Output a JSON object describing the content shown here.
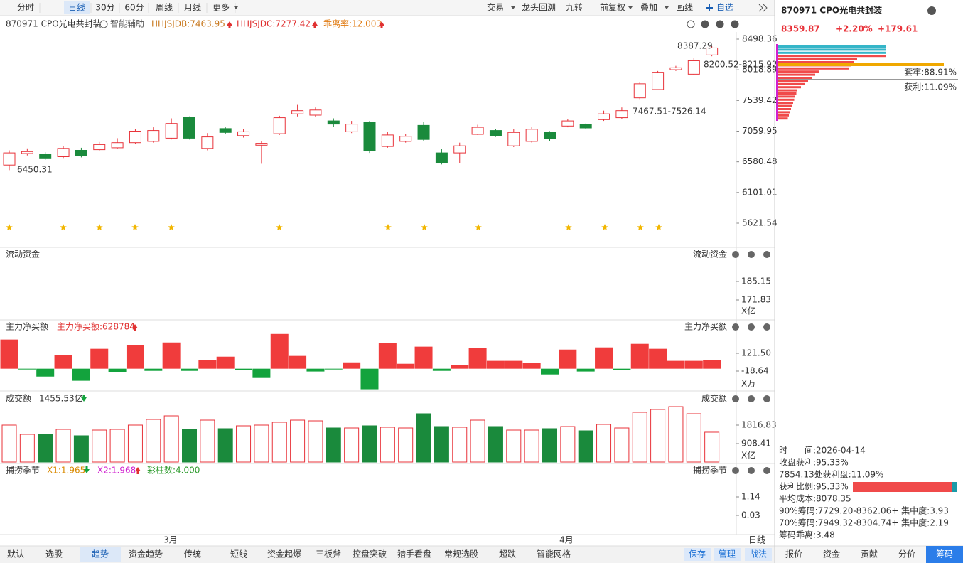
{
  "toolbar": {
    "left_tabs": [
      "分时",
      "日线",
      "30分",
      "60分",
      "周线",
      "月线",
      "更多"
    ],
    "right_buttons": [
      "交易",
      "龙头回溯",
      "九转",
      "前复权",
      "叠加",
      "画线",
      "自选"
    ]
  },
  "indicator_bar": {
    "name": "870971 CPO光电共封装",
    "assist": "智能辅助",
    "items": [
      "HHJSJDB:7463.95",
      "HHJSJDC:7277.42",
      "乖离率:12.003"
    ]
  },
  "price_chart": {
    "yticks": [
      8498.36,
      8018.89,
      7539.42,
      7059.95,
      6580.48,
      6101.01,
      5621.54
    ],
    "annotations": [
      "8387.29",
      "8200.52-8215.92",
      "7467.51-7526.14",
      "6450.31"
    ],
    "colors": {
      "up": "#e8333a",
      "down": "#1a8a3c"
    },
    "candles": {
      "open": [
        6530,
        6710,
        6700,
        6660,
        6760,
        6770,
        6800,
        6880,
        6900,
        6950,
        7280,
        6790,
        7100,
        6990,
        6840,
        7020,
        7330,
        7310,
        7220,
        7050,
        7200,
        6820,
        6900,
        7150,
        6720,
        6720,
        7010,
        7070,
        6830,
        6900,
        7040,
        7140,
        7160,
        7240,
        7270,
        7580,
        7710,
        8020,
        7950,
        8250
      ],
      "close": [
        6720,
        6740,
        6640,
        6790,
        6680,
        6850,
        6880,
        7060,
        7070,
        7180,
        6950,
        6970,
        7040,
        7050,
        6870,
        7270,
        7380,
        7390,
        7170,
        7170,
        6750,
        7000,
        6980,
        6930,
        6560,
        6830,
        7120,
        6990,
        7040,
        7090,
        6940,
        7220,
        7110,
        7330,
        7380,
        7800,
        7980,
        8050,
        8160,
        8360
      ],
      "high": [
        6760,
        6790,
        6730,
        6830,
        6800,
        6890,
        6950,
        7090,
        7120,
        7260,
        7290,
        7030,
        7120,
        7090,
        6900,
        7300,
        7470,
        7430,
        7260,
        7220,
        7220,
        7050,
        7020,
        7200,
        6780,
        6880,
        7160,
        7090,
        7090,
        7120,
        7060,
        7250,
        7180,
        7380,
        7430,
        7830,
        8000,
        8080,
        8210,
        8387.29
      ],
      "low": [
        6450.31,
        6680,
        6610,
        6640,
        6650,
        6750,
        6780,
        6860,
        6880,
        6930,
        6930,
        6760,
        7010,
        6960,
        6550,
        7000,
        7290,
        7280,
        7130,
        7030,
        6720,
        6800,
        6880,
        6900,
        6540,
        6560,
        7000,
        6970,
        6810,
        6880,
        6900,
        7120,
        7090,
        7220,
        7250,
        7560,
        7700,
        8000,
        7940,
        8230
      ]
    }
  },
  "fund_flow": {
    "title": "流动资金",
    "yticks": [
      185.15,
      171.83
    ],
    "unit": "X亿"
  },
  "main_net": {
    "title": "主力净买额",
    "value_label": "主力净买额:628784",
    "yticks": [
      {
        "value": 121.5,
        "label": "121.50"
      },
      -18.64
    ],
    "unit": "X万",
    "values": [
      230,
      -5,
      -62,
      106,
      -95,
      157,
      -28,
      185,
      -17,
      207,
      -17,
      67,
      95,
      -11,
      -73,
      274,
      101,
      -22,
      -3,
      50,
      -162,
      202,
      39,
      174,
      -17,
      28,
      162,
      62,
      62,
      45,
      -45,
      151,
      -22,
      168,
      -11,
      196,
      157,
      62,
      62,
      67
    ]
  },
  "volume": {
    "title": "成交额",
    "value_label": "1455.53亿",
    "yticks": [
      1816.83,
      908.41
    ],
    "unit": "X亿",
    "values": [
      1817,
      1363,
      1363,
      1607,
      1293,
      1572,
      1607,
      1817,
      2096,
      2271,
      1607,
      2061,
      1642,
      1782,
      1817,
      1957,
      2061,
      2026,
      1677,
      1677,
      1782,
      1712,
      1677,
      2376,
      1747,
      1712,
      2061,
      1747,
      1572,
      1572,
      1642,
      1747,
      1537,
      1852,
      1677,
      2446,
      2586,
      2725,
      2376,
      1468
    ]
  },
  "season": {
    "title": "捕捞季节",
    "items": [
      "X1:1.965",
      "X2:1.968",
      "彩柱数:4.000"
    ],
    "yticks": [
      1.14,
      0.03
    ]
  },
  "x_labels": [
    "3月",
    "4月"
  ],
  "period": "日线",
  "bottom_tabs": [
    "默认",
    "选股",
    "趋势",
    "资金趋势",
    "传统",
    "短线",
    "资金起爆",
    "三板斧",
    "控盘突破",
    "猎手看盘",
    "常规选股",
    "超跌",
    "智能网格"
  ],
  "bottom_buttons": [
    "保存",
    "管理",
    "战法"
  ],
  "side": {
    "title": "870971 CPO光电共封装",
    "price": "8359.87",
    "change_pct": "+2.20%",
    "change": "+179.61",
    "chip_labels": [
      "套牢:88.91%",
      "获利:11.09%"
    ],
    "info": [
      "时　　间:2026-04-14",
      "收盘获利:95.33%",
      "7854.13处获利盘:11.09%",
      "获利比例:95.33%",
      "平均成本:8078.35",
      "90%筹码:7729.20-8362.06+ 集中度:3.93",
      "70%筹码:7949.32-8304.74+ 集中度:2.19",
      "筹码乖离:3.48"
    ],
    "tabs": [
      "报价",
      "资金",
      "贡献",
      "分价",
      "筹码"
    ]
  }
}
